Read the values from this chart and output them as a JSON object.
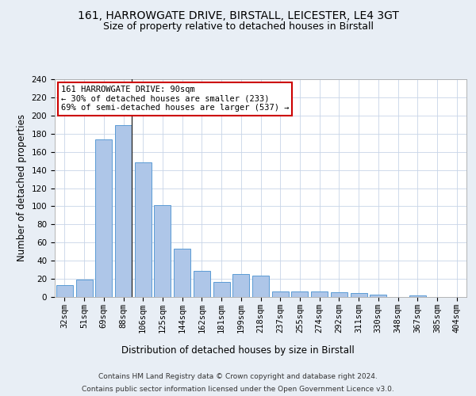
{
  "title": "161, HARROWGATE DRIVE, BIRSTALL, LEICESTER, LE4 3GT",
  "subtitle": "Size of property relative to detached houses in Birstall",
  "xlabel": "Distribution of detached houses by size in Birstall",
  "ylabel": "Number of detached properties",
  "categories": [
    "32sqm",
    "51sqm",
    "69sqm",
    "88sqm",
    "106sqm",
    "125sqm",
    "144sqm",
    "162sqm",
    "181sqm",
    "199sqm",
    "218sqm",
    "237sqm",
    "255sqm",
    "274sqm",
    "292sqm",
    "311sqm",
    "330sqm",
    "348sqm",
    "367sqm",
    "385sqm",
    "404sqm"
  ],
  "values": [
    13,
    19,
    174,
    189,
    148,
    101,
    53,
    29,
    17,
    25,
    24,
    6,
    6,
    6,
    5,
    4,
    3,
    0,
    2,
    0,
    0
  ],
  "bar_color": "#aec6e8",
  "bar_edge_color": "#5b9bd5",
  "property_line_x": 3.42,
  "annotation_text": "161 HARROWGATE DRIVE: 90sqm\n← 30% of detached houses are smaller (233)\n69% of semi-detached houses are larger (537) →",
  "annotation_box_color": "#ffffff",
  "annotation_box_edge_color": "#cc0000",
  "ylim": [
    0,
    240
  ],
  "yticks": [
    0,
    20,
    40,
    60,
    80,
    100,
    120,
    140,
    160,
    180,
    200,
    220,
    240
  ],
  "footer_line1": "Contains HM Land Registry data © Crown copyright and database right 2024.",
  "footer_line2": "Contains public sector information licensed under the Open Government Licence v3.0.",
  "bg_color": "#e8eef5",
  "plot_bg_color": "#ffffff",
  "title_fontsize": 10,
  "subtitle_fontsize": 9,
  "tick_fontsize": 7.5,
  "label_fontsize": 8.5,
  "footer_fontsize": 6.5
}
